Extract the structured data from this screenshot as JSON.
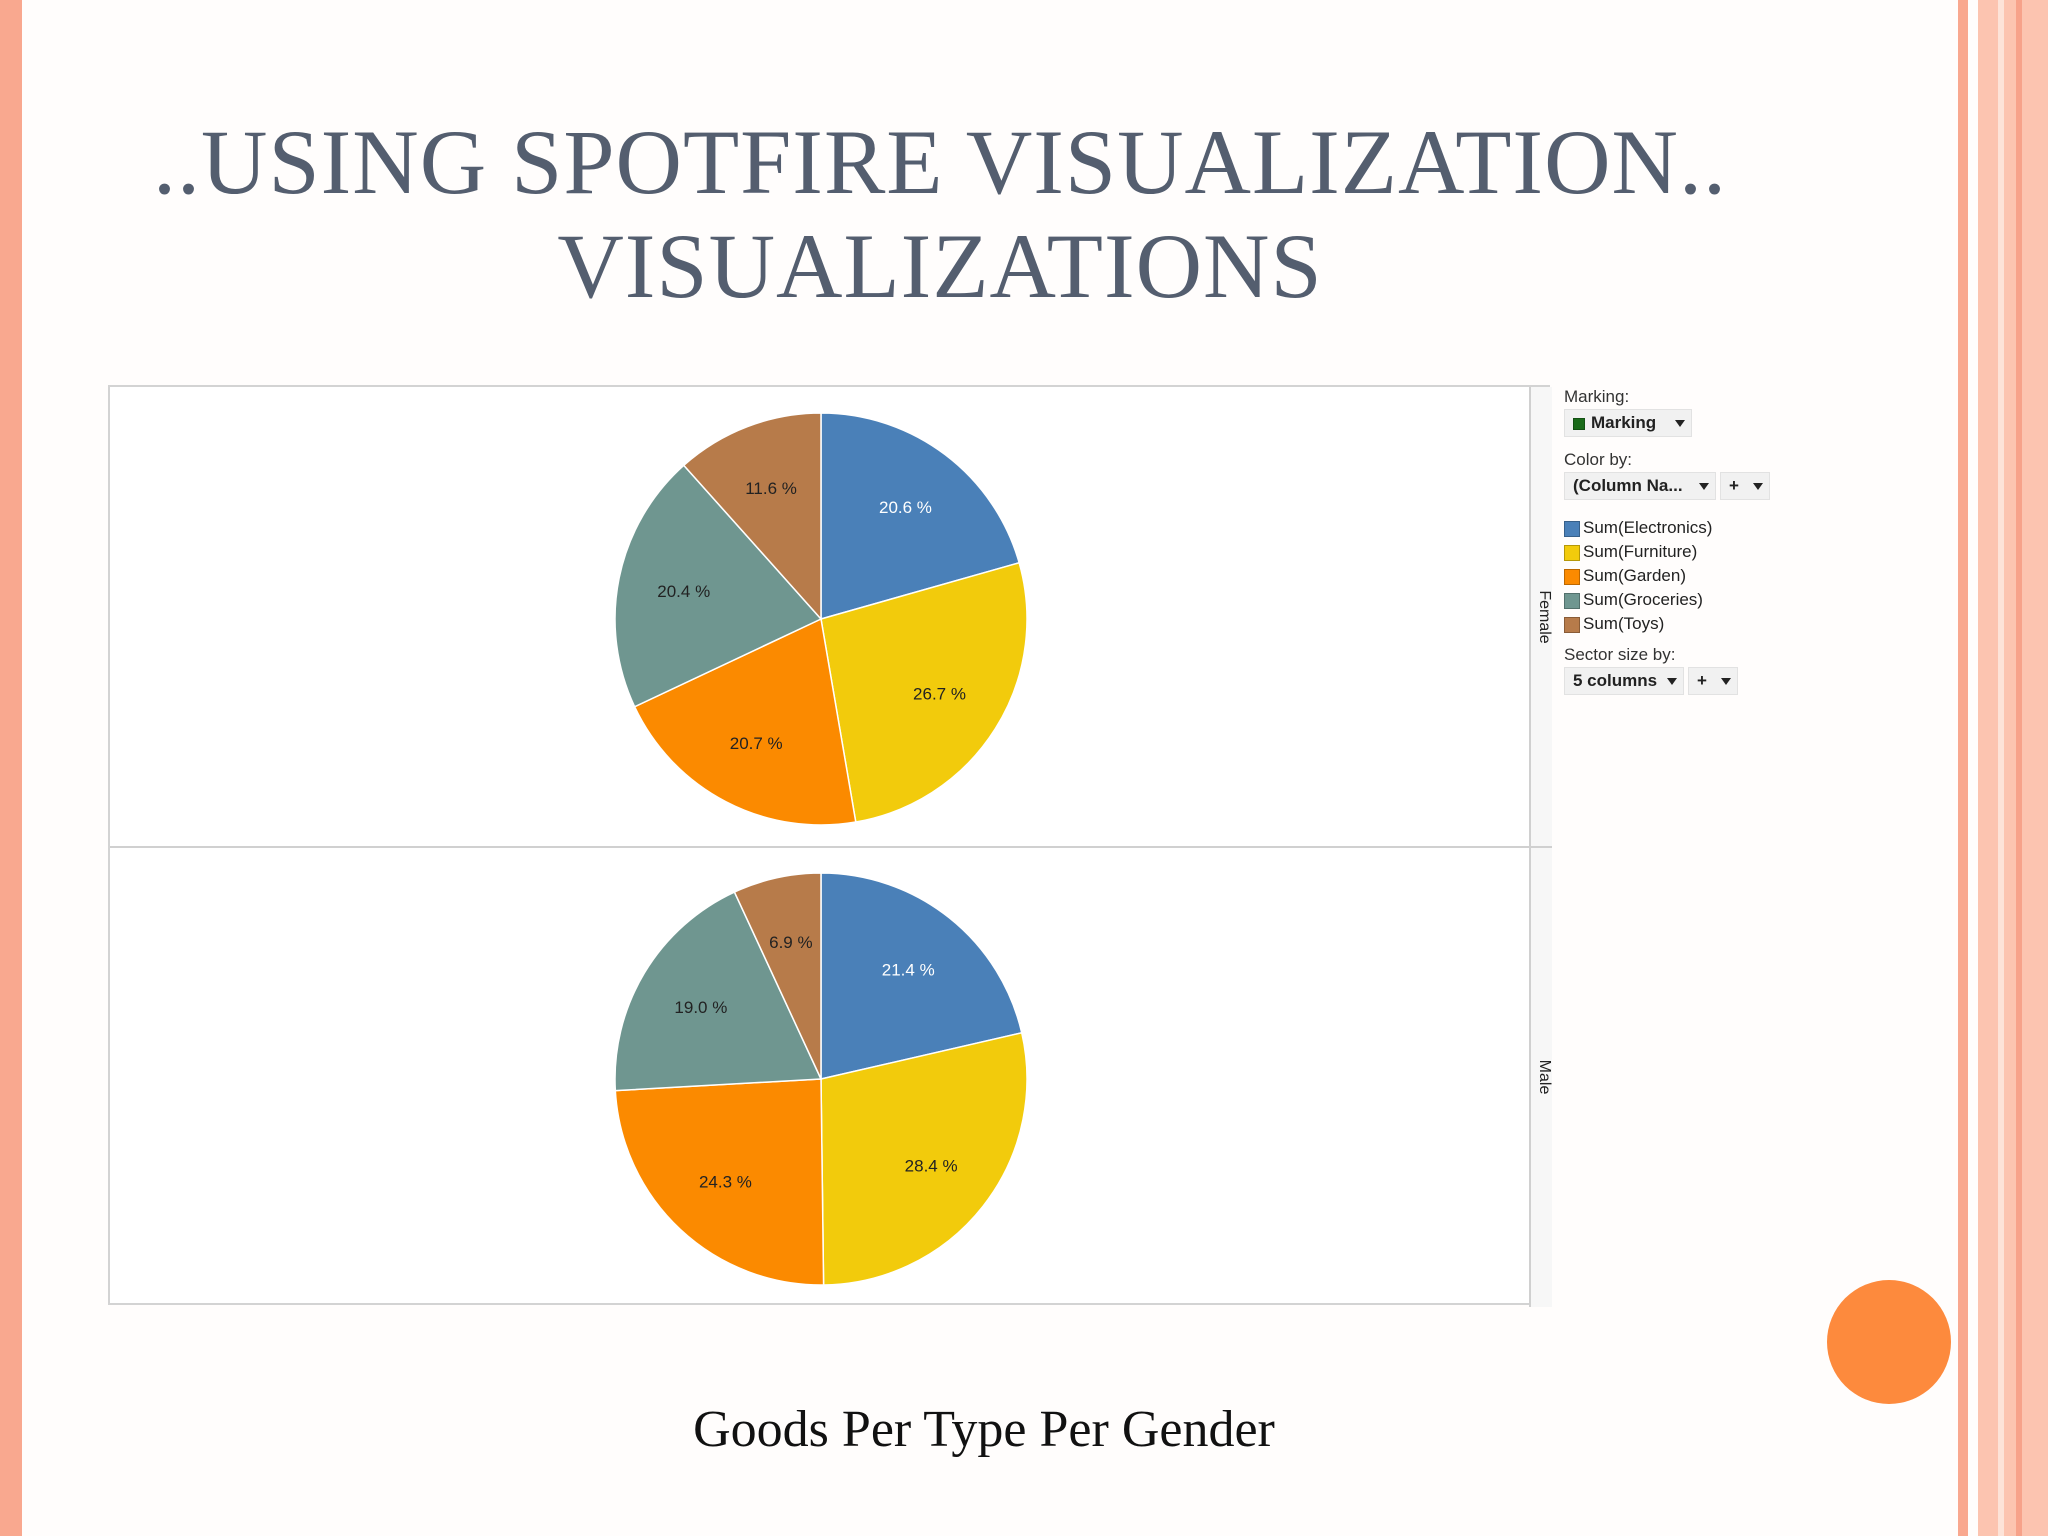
{
  "slide": {
    "title_line1": "..USING SPOTFIRE VISUALIZATION..",
    "title_line2": "VISUALIZATIONS",
    "caption": "Goods Per Type Per Gender"
  },
  "panel": {
    "marking_label": "Marking:",
    "marking_value": "Marking",
    "marking_color": "#1a6b1a",
    "color_by_label": "Color by:",
    "color_by_value": "(Column Na...",
    "plus": "+",
    "sector_size_label": "Sector size by:",
    "sector_size_value": "5 columns"
  },
  "chart_data": {
    "type": "pie",
    "categories": [
      "Sum(Electronics)",
      "Sum(Furniture)",
      "Sum(Garden)",
      "Sum(Groceries)",
      "Sum(Toys)"
    ],
    "colors": [
      "#4a80b8",
      "#f2cb0c",
      "#fb8a00",
      "#6f9690",
      "#b77b4a"
    ],
    "series": [
      {
        "name": "Female",
        "values": [
          20.6,
          26.7,
          20.7,
          20.4,
          11.6
        ],
        "labels": [
          "20.6 %",
          "26.7 %",
          "20.7 %",
          "20.4 %",
          "11.6 %"
        ]
      },
      {
        "name": "Male",
        "values": [
          21.4,
          28.4,
          24.3,
          19.0,
          6.9
        ],
        "labels": [
          "21.4 %",
          "28.4 %",
          "24.3 %",
          "19.0 %",
          "6.9 %"
        ]
      }
    ],
    "legend": "right"
  }
}
